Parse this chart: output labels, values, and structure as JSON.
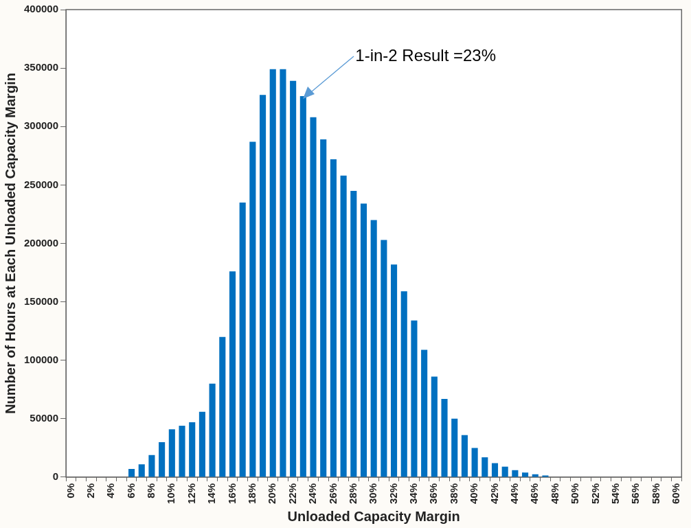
{
  "chart_data": {
    "type": "bar",
    "xlabel": "Unloaded Capacity Margin",
    "ylabel": "Number of Hours at Each Unloaded Capacity Margin",
    "categories": [
      "0%",
      null,
      "2%",
      null,
      "4%",
      null,
      "6%",
      null,
      "8%",
      null,
      "10%",
      null,
      "12%",
      null,
      "14%",
      null,
      "16%",
      null,
      "18%",
      null,
      "20%",
      null,
      "22%",
      null,
      "24%",
      null,
      "26%",
      null,
      "28%",
      null,
      "30%",
      null,
      "32%",
      null,
      "34%",
      null,
      "36%",
      null,
      "38%",
      null,
      "40%",
      null,
      "42%",
      null,
      "44%",
      null,
      "46%",
      null,
      "48%",
      null,
      "50%",
      null,
      "52%",
      null,
      "54%",
      null,
      "56%",
      null,
      "58%",
      null,
      "60%"
    ],
    "values": [
      0,
      0,
      0,
      0,
      0,
      0,
      7000,
      11000,
      19000,
      30000,
      41000,
      44000,
      47000,
      56000,
      80000,
      120000,
      176000,
      235000,
      287000,
      327000,
      349000,
      349000,
      339000,
      326000,
      308000,
      289000,
      272000,
      258000,
      245000,
      234000,
      220000,
      203000,
      182000,
      159000,
      134000,
      109000,
      86000,
      67000,
      50000,
      36000,
      25000,
      17000,
      12000,
      9000,
      6000,
      4000,
      2500,
      1500,
      0,
      0,
      0,
      0,
      0,
      0,
      0,
      0,
      0,
      0,
      0,
      0,
      0
    ],
    "color": "#0070c0",
    "ylim": [
      0,
      400000
    ],
    "yticks": [
      0,
      50000,
      100000,
      150000,
      200000,
      250000,
      300000,
      350000,
      400000
    ],
    "grid": false,
    "annotations": [
      "1-in-2 Result =23%"
    ]
  }
}
